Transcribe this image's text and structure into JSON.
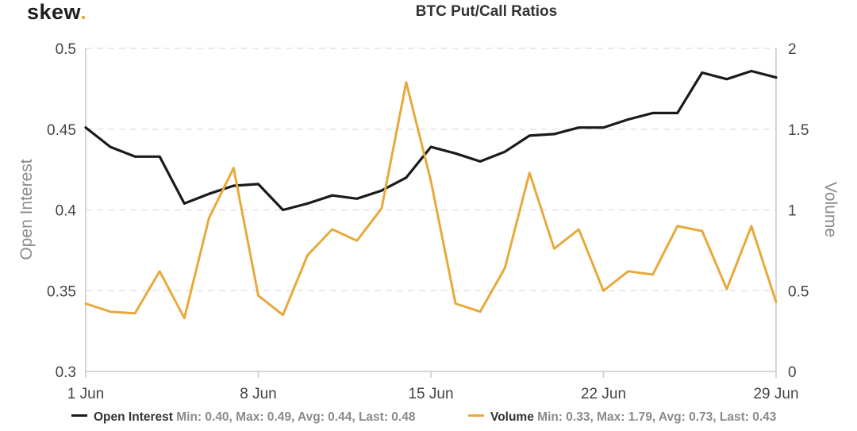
{
  "brand": {
    "name": "skew",
    "dot": "."
  },
  "chart_data": {
    "type": "line",
    "title": "BTC Put/Call Ratios",
    "x": [
      "1 Jun",
      "2 Jun",
      "3 Jun",
      "4 Jun",
      "5 Jun",
      "6 Jun",
      "7 Jun",
      "8 Jun",
      "9 Jun",
      "10 Jun",
      "11 Jun",
      "12 Jun",
      "13 Jun",
      "14 Jun",
      "15 Jun",
      "16 Jun",
      "17 Jun",
      "18 Jun",
      "19 Jun",
      "20 Jun",
      "21 Jun",
      "22 Jun",
      "23 Jun",
      "24 Jun",
      "25 Jun",
      "26 Jun",
      "27 Jun",
      "28 Jun",
      "29 Jun"
    ],
    "x_ticks": [
      "1 Jun",
      "8 Jun",
      "15 Jun",
      "22 Jun",
      "29 Jun"
    ],
    "y_left": {
      "label": "Open Interest",
      "range": [
        0.3,
        0.5
      ],
      "ticks": [
        "0.3",
        "0.35",
        "0.4",
        "0.45",
        "0.5"
      ]
    },
    "y_right": {
      "label": "Volume",
      "range": [
        0,
        2
      ],
      "ticks": [
        "0",
        "0.5",
        "1",
        "1.5",
        "2"
      ]
    },
    "grid": "horizontal-dashed",
    "legend_position": "bottom",
    "series": [
      {
        "name": "Open Interest",
        "axis": "left",
        "color": "#1a1a1a",
        "values": [
          0.451,
          0.439,
          0.433,
          0.433,
          0.404,
          0.41,
          0.415,
          0.416,
          0.4,
          0.404,
          0.409,
          0.407,
          0.412,
          0.42,
          0.439,
          0.435,
          0.43,
          0.436,
          0.446,
          0.447,
          0.451,
          0.451,
          0.456,
          0.46,
          0.46,
          0.485,
          0.481,
          0.486,
          0.482
        ],
        "stats": "Min: 0.40, Max: 0.49, Avg: 0.44, Last: 0.48"
      },
      {
        "name": "Volume",
        "axis": "right",
        "color": "#e8a93b",
        "values": [
          0.42,
          0.37,
          0.36,
          0.62,
          0.33,
          0.95,
          1.26,
          0.47,
          0.35,
          0.72,
          0.88,
          0.81,
          1.01,
          1.79,
          1.18,
          0.42,
          0.37,
          0.64,
          1.23,
          0.76,
          0.88,
          0.5,
          0.62,
          0.6,
          0.9,
          0.87,
          0.51,
          0.9,
          0.43
        ],
        "stats": "Min: 0.33, Max: 1.79, Avg: 0.73, Last: 0.43"
      }
    ]
  }
}
